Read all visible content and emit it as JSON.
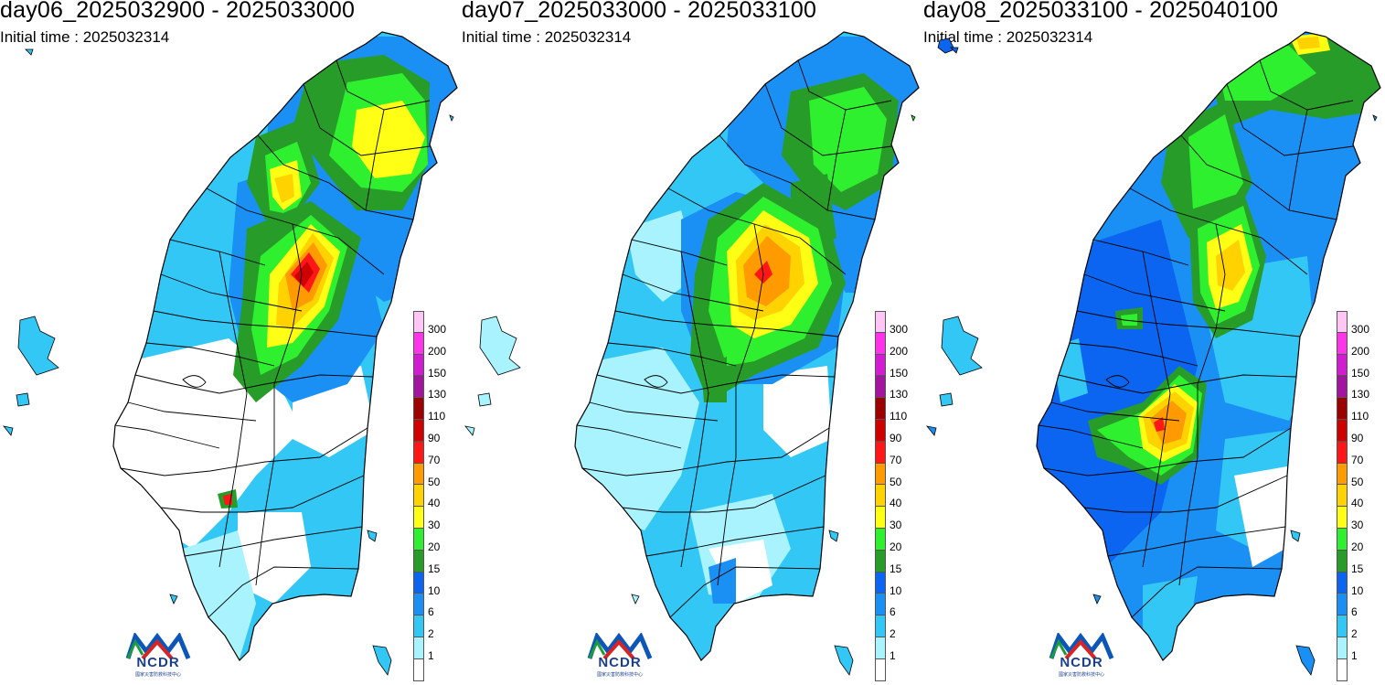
{
  "legend": {
    "levels": [
      {
        "label": "300",
        "color": "#ffc6f5"
      },
      {
        "label": "200",
        "color": "#ff33ea"
      },
      {
        "label": "150",
        "color": "#d21cd2"
      },
      {
        "label": "130",
        "color": "#a3159e"
      },
      {
        "label": "110",
        "color": "#9c0000"
      },
      {
        "label": "90",
        "color": "#cf0000"
      },
      {
        "label": "70",
        "color": "#ff1717"
      },
      {
        "label": "50",
        "color": "#ff9a00"
      },
      {
        "label": "40",
        "color": "#ffd200"
      },
      {
        "label": "30",
        "color": "#ffff15"
      },
      {
        "label": "20",
        "color": "#2ff02f"
      },
      {
        "label": "15",
        "color": "#289c28"
      },
      {
        "label": "10",
        "color": "#0b65f0"
      },
      {
        "label": "6",
        "color": "#1a90f5"
      },
      {
        "label": "2",
        "color": "#33c7f5"
      },
      {
        "label": "1",
        "color": "#a9f3ff"
      },
      {
        "label": "",
        "color": "#ffffff"
      }
    ]
  },
  "logo": {
    "text": "NCDR",
    "subtitle": "國家災害防救科技中心"
  },
  "panels": [
    {
      "title": "day06_2025032900 - 2025033000",
      "initial_time": "Initial time : 2025032314",
      "dominant": [
        "#33c7f5",
        "#1a90f5",
        "#2ff02f",
        "#ffff15",
        "#ff9a00",
        "#cf0000"
      ]
    },
    {
      "title": "day07_2025033000 - 2025033100",
      "initial_time": "Initial time : 2025032314",
      "dominant": [
        "#a9f3ff",
        "#33c7f5",
        "#1a90f5",
        "#2ff02f",
        "#ffff15",
        "#ff9a00",
        "#ff1717"
      ]
    },
    {
      "title": "day08_2025033100 - 2025040100",
      "initial_time": "Initial time : 2025032314",
      "dominant": [
        "#33c7f5",
        "#1a90f5",
        "#0b65f0",
        "#289c28",
        "#2ff02f",
        "#ffff15",
        "#ff9a00",
        "#ff1717"
      ]
    }
  ]
}
